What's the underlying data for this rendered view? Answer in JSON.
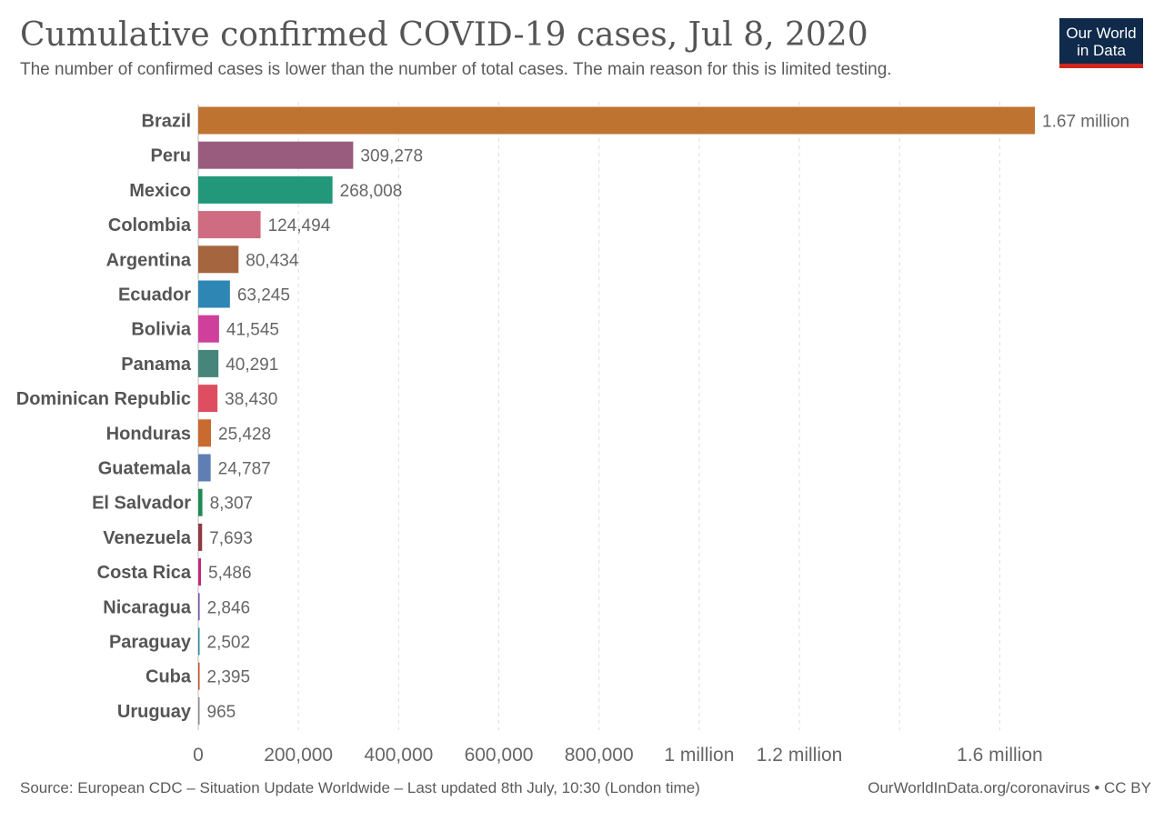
{
  "header": {
    "title": "Cumulative confirmed COVID-19 cases, Jul 8, 2020",
    "subtitle": "The number of confirmed cases is lower than the number of total cases. The main reason for this is limited testing."
  },
  "logo": {
    "line1": "Our World",
    "line2": "in Data",
    "bg_color": "#0f2a4a",
    "accent_color": "#ce261e"
  },
  "footer": {
    "source": "Source: European CDC – Situation Update Worldwide – Last updated 8th July, 10:30 (London time)",
    "right": "OurWorldInData.org/coronavirus • CC BY"
  },
  "chart_data": {
    "type": "bar",
    "orientation": "horizontal",
    "xlim": [
      0,
      1670000
    ],
    "grid": "vertical dashed",
    "ticks": [
      {
        "value": 0,
        "label": "0"
      },
      {
        "value": 200000,
        "label": "200,000"
      },
      {
        "value": 400000,
        "label": "400,000"
      },
      {
        "value": 600000,
        "label": "600,000"
      },
      {
        "value": 800000,
        "label": "800,000"
      },
      {
        "value": 1000000,
        "label": "1 million"
      },
      {
        "value": 1200000,
        "label": "1.2 million"
      },
      {
        "value": 1400000,
        "label": ""
      },
      {
        "value": 1600000,
        "label": "1.6 million"
      }
    ],
    "bars": [
      {
        "category": "Brazil",
        "value": 1670000,
        "label": "1.67 million",
        "color": "#be7331"
      },
      {
        "category": "Peru",
        "value": 309278,
        "label": "309,278",
        "color": "#9a5c7e"
      },
      {
        "category": "Mexico",
        "value": 268008,
        "label": "268,008",
        "color": "#22977a"
      },
      {
        "category": "Colombia",
        "value": 124494,
        "label": "124,494",
        "color": "#cf6c81"
      },
      {
        "category": "Argentina",
        "value": 80434,
        "label": "80,434",
        "color": "#a4653f"
      },
      {
        "category": "Ecuador",
        "value": 63245,
        "label": "63,245",
        "color": "#2d86b3"
      },
      {
        "category": "Bolivia",
        "value": 41545,
        "label": "41,545",
        "color": "#cf3f9c"
      },
      {
        "category": "Panama",
        "value": 40291,
        "label": "40,291",
        "color": "#46867a"
      },
      {
        "category": "Dominican Republic",
        "value": 38430,
        "label": "38,430",
        "color": "#dd4e60"
      },
      {
        "category": "Honduras",
        "value": 25428,
        "label": "25,428",
        "color": "#c96a2e"
      },
      {
        "category": "Guatemala",
        "value": 24787,
        "label": "24,787",
        "color": "#5f7eb4"
      },
      {
        "category": "El Salvador",
        "value": 8307,
        "label": "8,307",
        "color": "#1f8a55"
      },
      {
        "category": "Venezuela",
        "value": 7693,
        "label": "7,693",
        "color": "#8e3a44"
      },
      {
        "category": "Costa Rica",
        "value": 5486,
        "label": "5,486",
        "color": "#c42a79"
      },
      {
        "category": "Nicaragua",
        "value": 2846,
        "label": "2,846",
        "color": "#7c4fa3"
      },
      {
        "category": "Paraguay",
        "value": 2502,
        "label": "2,502",
        "color": "#2a8c9c"
      },
      {
        "category": "Cuba",
        "value": 2395,
        "label": "2,395",
        "color": "#c2502f"
      },
      {
        "category": "Uruguay",
        "value": 965,
        "label": "965",
        "color": "#8a8a8a"
      }
    ]
  }
}
